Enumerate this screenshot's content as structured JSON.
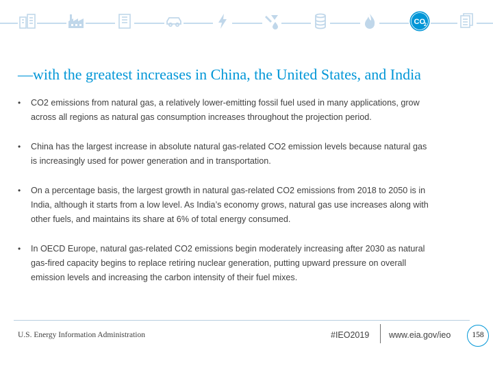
{
  "header": {
    "icons": [
      "buildings-icon",
      "factory-icon",
      "office-building-icon",
      "car-icon",
      "lightning-icon",
      "oil-drop-icon",
      "barrel-icon",
      "flame-icon",
      "co2-icon",
      "documents-icon"
    ],
    "active_icon": "co2-icon",
    "active_icon_label": "CO",
    "active_icon_sub": "2",
    "accent_color": "#0096d7",
    "icon_color": "#c0d7ea"
  },
  "slide": {
    "title": "—with the greatest increases in China, the United States, and India",
    "bullets": [
      {
        "marker": "•",
        "lines": [
          "CO2 emissions from natural gas, a relatively lower-emitting fossil fuel used in many applications, grow",
          "across all regions as natural gas consumption increases throughout the projection period."
        ]
      },
      {
        "marker": "•",
        "lines": [
          "China has the largest increase in absolute natural gas-related CO2 emission levels because natural gas",
          "is increasingly used for power generation and in transportation."
        ]
      },
      {
        "marker": "•",
        "lines": [
          "On a percentage basis, the largest growth in natural gas-related CO2 emissions from 2018 to 2050 is in",
          "India, although it starts from a low level. As India’s economy grows, natural gas use increases along with",
          "other fuels, and maintains its share at 6% of total energy consumed."
        ]
      },
      {
        "marker": "•",
        "lines": [
          "In OECD Europe, natural gas-related CO2 emissions begin moderately increasing after 2030 as natural",
          "gas-fired capacity begins to replace retiring nuclear generation, putting upward pressure on overall",
          "emission levels and increasing the carbon intensity of their fuel mixes."
        ]
      }
    ]
  },
  "footer": {
    "organization": "U.S. Energy Information Administration",
    "hashtag": "#IEO2019",
    "url": "www.eia.gov/ieo",
    "page_number": "158"
  }
}
